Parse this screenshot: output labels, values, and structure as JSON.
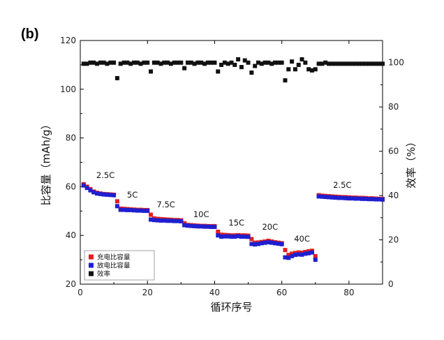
{
  "panel_label": "(b)",
  "chart_data": {
    "type": "scatter",
    "xlabel": "循环序号",
    "ylabel_left": "比容量（mAh/g）",
    "ylabel_right": "效率（%）",
    "xlim": [
      0,
      90
    ],
    "ylim_left": [
      20,
      120
    ],
    "ylim_right": [
      0,
      110
    ],
    "x_ticks": [
      0,
      20,
      40,
      60,
      80
    ],
    "y_left_ticks": [
      20,
      40,
      60,
      80,
      100,
      120
    ],
    "y_right_ticks": [
      0,
      20,
      40,
      60,
      80,
      100
    ],
    "legend_position": "bottom-left",
    "rate_labels": [
      {
        "text": "2.5C",
        "x": 7.5,
        "y": 63.5
      },
      {
        "text": "5C",
        "x": 15.5,
        "y": 55.5
      },
      {
        "text": "7.5C",
        "x": 25.5,
        "y": 51.5
      },
      {
        "text": "10C",
        "x": 36,
        "y": 47.5
      },
      {
        "text": "15C",
        "x": 46.5,
        "y": 44
      },
      {
        "text": "20C",
        "x": 56.5,
        "y": 42.3
      },
      {
        "text": "40C",
        "x": 66,
        "y": 37.5
      },
      {
        "text": "2.5C",
        "x": 78,
        "y": 59.5
      }
    ],
    "series": [
      {
        "name": "充电比容量",
        "color": "#e02020",
        "axis": "left",
        "x": [
          1,
          2,
          3,
          4,
          5,
          6,
          7,
          8,
          9,
          10,
          11,
          12,
          13,
          14,
          15,
          16,
          17,
          18,
          19,
          20,
          21,
          22,
          23,
          24,
          25,
          26,
          27,
          28,
          29,
          30,
          31,
          32,
          33,
          34,
          35,
          36,
          37,
          38,
          39,
          40,
          41,
          42,
          43,
          44,
          45,
          46,
          47,
          48,
          49,
          50,
          51,
          52,
          53,
          54,
          55,
          56,
          57,
          58,
          59,
          60,
          61,
          62,
          63,
          64,
          65,
          66,
          67,
          68,
          69,
          70,
          71,
          72,
          73,
          74,
          75,
          76,
          77,
          78,
          79,
          80,
          81,
          82,
          83,
          84,
          85,
          86,
          87,
          88,
          89,
          90
        ],
        "y": [
          61,
          60,
          59,
          58,
          57.5,
          57.2,
          57,
          56.9,
          56.8,
          56.7,
          54,
          51,
          50.9,
          50.8,
          50.7,
          50.6,
          50.5,
          50.5,
          50.4,
          50.4,
          48.5,
          47,
          46.8,
          46.7,
          46.6,
          46.5,
          46.4,
          46.3,
          46.3,
          46.2,
          45,
          44.3,
          44.2,
          44.1,
          44,
          43.9,
          43.9,
          43.8,
          43.8,
          43.8,
          41.5,
          40.3,
          40.2,
          40.1,
          40,
          40,
          40.1,
          40,
          40,
          39.9,
          38.5,
          37,
          37.1,
          37.3,
          37.5,
          37.8,
          37.5,
          37.2,
          37,
          36.8,
          34,
          32,
          32.5,
          32.8,
          33,
          32.9,
          33.2,
          33.5,
          33.7,
          31.5,
          56.5,
          56.3,
          56.2,
          56.1,
          56,
          55.9,
          55.8,
          55.7,
          55.7,
          55.6,
          55.5,
          55.5,
          55.4,
          55.4,
          55.3,
          55.2,
          55.2,
          55.1,
          55,
          55
        ],
        "marker": "square"
      },
      {
        "name": "放电比容量",
        "color": "#1f1fd0",
        "axis": "left",
        "x": [
          1,
          2,
          3,
          4,
          5,
          6,
          7,
          8,
          9,
          10,
          11,
          12,
          13,
          14,
          15,
          16,
          17,
          18,
          19,
          20,
          21,
          22,
          23,
          24,
          25,
          26,
          27,
          28,
          29,
          30,
          31,
          32,
          33,
          34,
          35,
          36,
          37,
          38,
          39,
          40,
          41,
          42,
          43,
          44,
          45,
          46,
          47,
          48,
          49,
          50,
          51,
          52,
          53,
          54,
          55,
          56,
          57,
          58,
          59,
          60,
          61,
          62,
          63,
          64,
          65,
          66,
          67,
          68,
          69,
          70,
          71,
          72,
          73,
          74,
          75,
          76,
          77,
          78,
          79,
          80,
          81,
          82,
          83,
          84,
          85,
          86,
          87,
          88,
          89,
          90
        ],
        "y": [
          60.5,
          59.5,
          58.5,
          57.7,
          57.2,
          57,
          56.8,
          56.7,
          56.6,
          56.5,
          52,
          50.5,
          50.5,
          50.4,
          50.4,
          50.3,
          50.2,
          50.2,
          50.1,
          50.1,
          46.5,
          46.3,
          46.2,
          46.1,
          46.1,
          46,
          46,
          45.9,
          45.9,
          45.8,
          44.2,
          44,
          43.9,
          43.8,
          43.7,
          43.7,
          43.6,
          43.6,
          43.5,
          43.5,
          40,
          39.5,
          39.6,
          39.6,
          39.5,
          39.5,
          39.7,
          39.5,
          39.5,
          39.4,
          36.5,
          36.3,
          36.5,
          36.8,
          37,
          37.2,
          37,
          36.8,
          36.6,
          36.4,
          31,
          30.8,
          31.5,
          32,
          32.2,
          32.1,
          32.5,
          32.7,
          33,
          30,
          56,
          55.9,
          55.8,
          55.7,
          55.6,
          55.5,
          55.4,
          55.4,
          55.3,
          55.2,
          55.2,
          55.1,
          55.1,
          55,
          55,
          54.9,
          54.9,
          54.8,
          54.8,
          54.7
        ],
        "marker": "square"
      },
      {
        "name": "效率",
        "color": "#111111",
        "axis": "right",
        "x": [
          1,
          2,
          3,
          4,
          5,
          6,
          7,
          8,
          9,
          10,
          11,
          12,
          13,
          14,
          15,
          16,
          17,
          18,
          19,
          20,
          21,
          22,
          23,
          24,
          25,
          26,
          27,
          28,
          29,
          30,
          31,
          32,
          33,
          34,
          35,
          36,
          37,
          38,
          39,
          40,
          41,
          42,
          43,
          44,
          45,
          46,
          47,
          48,
          49,
          50,
          51,
          52,
          53,
          54,
          55,
          56,
          57,
          58,
          59,
          60,
          61,
          62,
          63,
          64,
          65,
          66,
          67,
          68,
          69,
          70,
          71,
          72,
          73,
          74,
          75,
          76,
          77,
          78,
          79,
          80,
          81,
          82,
          83,
          84,
          85,
          86,
          87,
          88,
          89,
          90
        ],
        "y": [
          99.5,
          99.5,
          100,
          100,
          99.5,
          100,
          100,
          99.5,
          100,
          100,
          93,
          99.5,
          100,
          100,
          99.5,
          100,
          100,
          99.5,
          100,
          100,
          96,
          100,
          100,
          99.5,
          100,
          100,
          99.5,
          100,
          100,
          100,
          97.5,
          100,
          100,
          99.5,
          100,
          100,
          99.5,
          100,
          100,
          100,
          96,
          99,
          100,
          99.5,
          100,
          99,
          101.5,
          98,
          101,
          100,
          95.5,
          98.5,
          100,
          99.5,
          100,
          100,
          99.5,
          100,
          100,
          100,
          92,
          97,
          100.5,
          97,
          99,
          101.5,
          100,
          97,
          96.5,
          97,
          99.5,
          99.5,
          100,
          99.5,
          99.5,
          99.5,
          99.5,
          99.5,
          99.5,
          99.5,
          99.5,
          99.5,
          99.5,
          99.5,
          99.5,
          99.5,
          99.5,
          99.5,
          99.5,
          99.5
        ],
        "marker": "square"
      }
    ]
  }
}
